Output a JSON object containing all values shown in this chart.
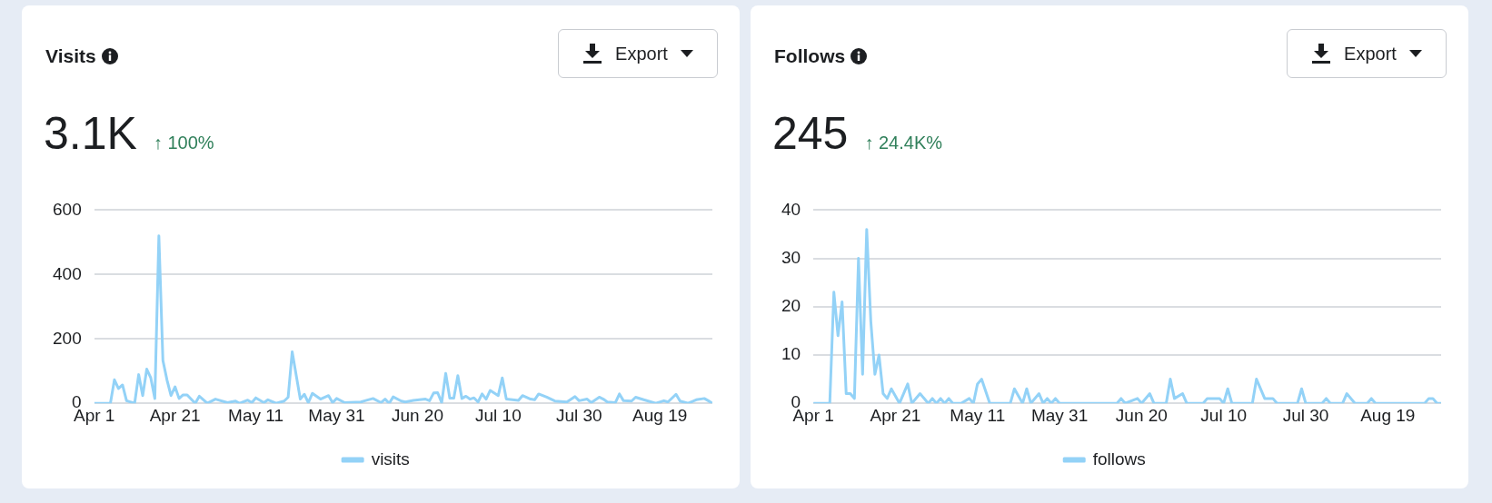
{
  "chart_data": [
    {
      "type": "line",
      "title": "Visits",
      "subtitle": "3.1K",
      "annotations": [
        "↑ 100%",
        "Export"
      ],
      "legend": "bottom",
      "grid": "y",
      "xlim": [
        "--04-01",
        "--09-01"
      ],
      "xticks": [
        {
          "value": "--04-01",
          "label": "Apr 1"
        },
        {
          "value": "--04-21",
          "label": "Apr 21"
        },
        {
          "value": "--05-11",
          "label": "May 11"
        },
        {
          "value": "--05-31",
          "label": "May 31"
        },
        {
          "value": "--06-20",
          "label": "Jun 20"
        },
        {
          "value": "--07-10",
          "label": "Jul 10"
        },
        {
          "value": "--07-30",
          "label": "Jul 30"
        },
        {
          "value": "--08-19",
          "label": "Aug 19"
        }
      ],
      "ylim": [
        0,
        600
      ],
      "yticks": [
        0,
        200,
        400,
        600
      ],
      "series": [
        {
          "name": "visits",
          "color": "#93d2f7",
          "x": [
            "--04-01",
            "--04-05",
            "--04-06",
            "--04-07",
            "--04-08",
            "--04-09",
            "--04-11",
            "--04-12",
            "--04-13",
            "--04-14",
            "--04-15",
            "--04-16",
            "--04-17",
            "--04-18",
            "--04-19",
            "--04-20",
            "--04-21",
            "--04-22",
            "--04-23",
            "--04-24",
            "--04-26",
            "--04-27",
            "--04-29",
            "--05-01",
            "--05-04",
            "--05-06",
            "--05-07",
            "--05-09",
            "--05-10",
            "--05-11",
            "--05-13",
            "--05-14",
            "--05-16",
            "--05-18",
            "--05-19",
            "--05-20",
            "--05-22",
            "--05-23",
            "--05-24",
            "--05-25",
            "--05-27",
            "--05-29",
            "--05-30",
            "--05-31",
            "--06-02",
            "--06-06",
            "--06-07",
            "--06-09",
            "--06-11",
            "--06-12",
            "--06-13",
            "--06-14",
            "--06-16",
            "--06-17",
            "--06-19",
            "--06-22",
            "--06-23",
            "--06-24",
            "--06-25",
            "--06-26",
            "--06-27",
            "--06-28",
            "--06-29",
            "--06-30",
            "--07-01",
            "--07-02",
            "--07-03",
            "--07-04",
            "--07-05",
            "--07-06",
            "--07-07",
            "--07-08",
            "--07-10",
            "--07-11",
            "--07-12",
            "--07-15",
            "--07-16",
            "--07-18",
            "--07-19",
            "--07-20",
            "--07-22",
            "--07-24",
            "--07-27",
            "--07-29",
            "--07-30",
            "--08-01",
            "--08-02",
            "--08-04",
            "--08-05",
            "--08-06",
            "--08-08",
            "--08-09",
            "--08-10",
            "--08-12",
            "--08-13",
            "--08-15",
            "--08-18",
            "--08-20",
            "--08-21",
            "--08-23",
            "--08-24",
            "--08-26",
            "--08-28",
            "--08-30",
            "--08-31",
            "--09-01"
          ],
          "values": [
            0,
            0,
            73,
            46,
            57,
            8,
            0,
            89,
            24,
            106,
            79,
            15,
            520,
            133,
            73,
            24,
            51,
            15,
            26,
            26,
            0,
            22,
            0,
            13,
            2,
            7,
            0,
            10,
            2,
            17,
            2,
            11,
            0,
            7,
            19,
            160,
            13,
            28,
            2,
            31,
            13,
            24,
            2,
            15,
            2,
            4,
            8,
            15,
            2,
            13,
            0,
            20,
            7,
            4,
            9,
            13,
            8,
            32,
            33,
            2,
            93,
            16,
            16,
            86,
            15,
            22,
            13,
            17,
            4,
            29,
            13,
            40,
            24,
            79,
            13,
            9,
            24,
            13,
            11,
            29,
            19,
            7,
            4,
            21,
            8,
            13,
            2,
            19,
            13,
            4,
            2,
            29,
            8,
            7,
            19,
            11,
            0,
            8,
            4,
            28,
            7,
            0,
            11,
            15,
            8,
            0
          ]
        }
      ]
    },
    {
      "type": "line",
      "title": "Follows",
      "subtitle": "245",
      "annotations": [
        "↑ 24.4K%",
        "Export"
      ],
      "legend": "bottom",
      "grid": "y",
      "xlim": [
        "--04-01",
        "--09-01"
      ],
      "xticks": [
        {
          "value": "--04-01",
          "label": "Apr 1"
        },
        {
          "value": "--04-21",
          "label": "Apr 21"
        },
        {
          "value": "--05-11",
          "label": "May 11"
        },
        {
          "value": "--05-31",
          "label": "May 31"
        },
        {
          "value": "--06-20",
          "label": "Jun 20"
        },
        {
          "value": "--07-10",
          "label": "Jul 10"
        },
        {
          "value": "--07-30",
          "label": "Jul 30"
        },
        {
          "value": "--08-19",
          "label": "Aug 19"
        }
      ],
      "ylim": [
        0,
        40
      ],
      "yticks": [
        0,
        10,
        20,
        30,
        40
      ],
      "series": [
        {
          "name": "follows",
          "color": "#93d2f7",
          "x": [
            "--04-01",
            "--04-05",
            "--04-06",
            "--04-07",
            "--04-08",
            "--04-09",
            "--04-10",
            "--04-11",
            "--04-12",
            "--04-13",
            "--04-14",
            "--04-15",
            "--04-16",
            "--04-17",
            "--04-18",
            "--04-19",
            "--04-20",
            "--04-22",
            "--04-24",
            "--04-25",
            "--04-27",
            "--04-29",
            "--04-30",
            "--05-01",
            "--05-02",
            "--05-03",
            "--05-04",
            "--05-05",
            "--05-07",
            "--05-09",
            "--05-10",
            "--05-11",
            "--05-12",
            "--05-14",
            "--05-19",
            "--05-20",
            "--05-22",
            "--05-23",
            "--05-24",
            "--05-26",
            "--05-27",
            "--05-28",
            "--05-29",
            "--05-30",
            "--05-31",
            "--06-14",
            "--06-15",
            "--06-16",
            "--06-19",
            "--06-20",
            "--06-22",
            "--06-23",
            "--06-26",
            "--06-27",
            "--06-28",
            "--06-30",
            "--07-01",
            "--07-05",
            "--07-06",
            "--07-09",
            "--07-10",
            "--07-11",
            "--07-12",
            "--07-17",
            "--07-18",
            "--07-20",
            "--07-22",
            "--07-23",
            "--07-28",
            "--07-29",
            "--07-30",
            "--08-03",
            "--08-04",
            "--08-05",
            "--08-08",
            "--08-09",
            "--08-11",
            "--08-14",
            "--08-15",
            "--08-16",
            "--08-28",
            "--08-29",
            "--08-30",
            "--08-31",
            "--09-01"
          ],
          "values": [
            0,
            0,
            23,
            14,
            21,
            2,
            2,
            1,
            30,
            6,
            36,
            17,
            6,
            10,
            2,
            1,
            3,
            0,
            4,
            0,
            2,
            0,
            1,
            0,
            1,
            0,
            1,
            0,
            0,
            1,
            0,
            4,
            5,
            0,
            0,
            3,
            0,
            3,
            0,
            2,
            0,
            1,
            0,
            1,
            0,
            0,
            1,
            0,
            1,
            0,
            2,
            0,
            0,
            5,
            1,
            2,
            0,
            0,
            1,
            1,
            0,
            3,
            0,
            0,
            5,
            1,
            1,
            0,
            0,
            3,
            0,
            0,
            1,
            0,
            0,
            2,
            0,
            0,
            1,
            0,
            0,
            1,
            1,
            0,
            0
          ]
        }
      ]
    }
  ]
}
